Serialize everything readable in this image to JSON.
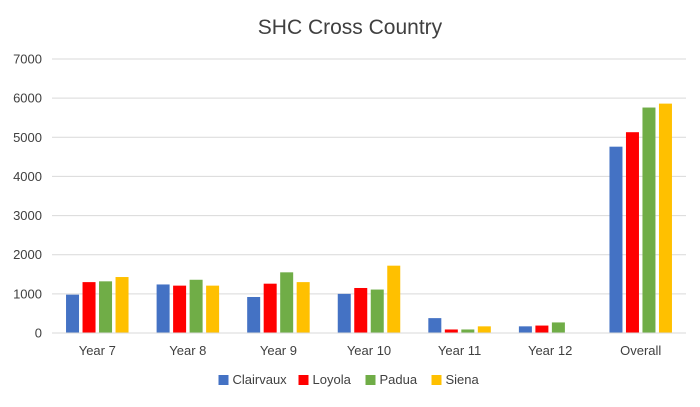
{
  "chart_data": {
    "type": "bar",
    "title": "SHC Cross Country",
    "xlabel": "",
    "ylabel": "",
    "categories": [
      "Year 7",
      "Year 8",
      "Year 9",
      "Year 10",
      "Year 11",
      "Year 12",
      "Overall"
    ],
    "ylim": [
      0,
      7000
    ],
    "yticks": [
      0,
      1000,
      2000,
      3000,
      4000,
      5000,
      6000,
      7000
    ],
    "grid": true,
    "legend_position": "bottom",
    "series": [
      {
        "name": "Clairvaux",
        "color": "#4472C4",
        "values": [
          980,
          1240,
          920,
          1000,
          380,
          170,
          4760
        ]
      },
      {
        "name": "Loyola",
        "color": "#FF0000",
        "values": [
          1300,
          1210,
          1260,
          1150,
          90,
          190,
          5130
        ]
      },
      {
        "name": "Padua",
        "color": "#70AD47",
        "values": [
          1320,
          1360,
          1550,
          1110,
          90,
          270,
          5760
        ]
      },
      {
        "name": "Siena",
        "color": "#FFC000",
        "values": [
          1430,
          1210,
          1300,
          1720,
          170,
          0,
          5860
        ]
      }
    ]
  }
}
